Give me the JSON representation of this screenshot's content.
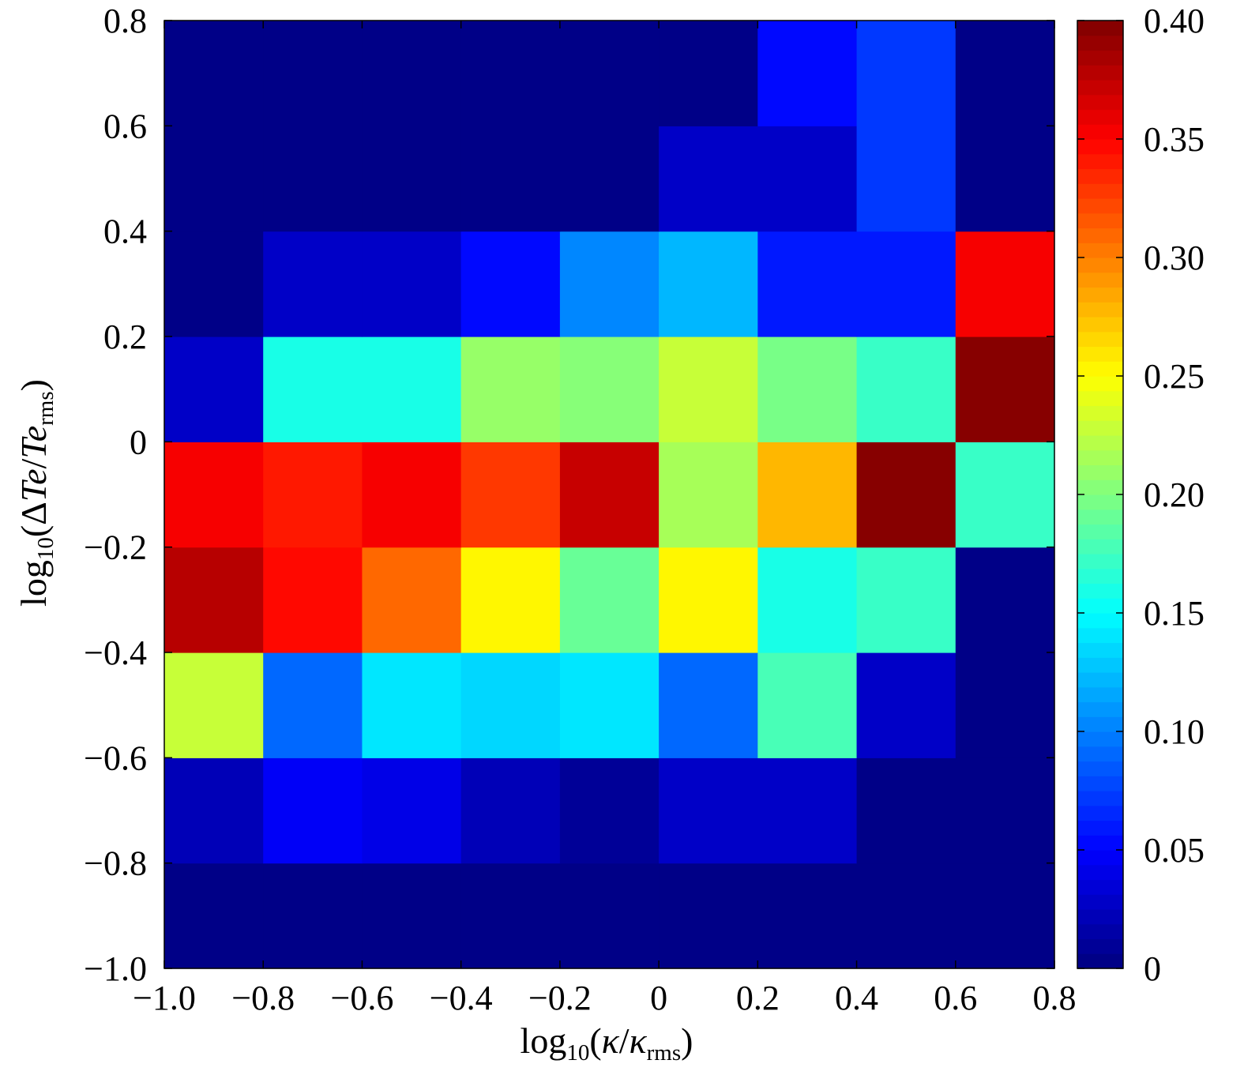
{
  "chart_data": {
    "type": "heatmap",
    "title": "",
    "xlabel": {
      "prefix": "log",
      "base": "10",
      "open": "(",
      "num": "κ",
      "slash": "/",
      "den": "κ",
      "den_sub": "rms",
      "close": ")"
    },
    "ylabel": {
      "prefix": "log",
      "base": "10",
      "open": "(",
      "delta": "Δ",
      "num": "Te",
      "slash": "/",
      "den": "Te",
      "den_sub": "rms",
      "close": ")"
    },
    "xlim": [
      -1.0,
      0.8
    ],
    "ylim": [
      -1.0,
      0.8
    ],
    "x_edges": [
      -1.0,
      -0.8,
      -0.6,
      -0.4,
      -0.2,
      0.0,
      0.2,
      0.4,
      0.6,
      0.8
    ],
    "y_edges": [
      -1.0,
      -0.8,
      -0.6,
      -0.4,
      -0.2,
      0.0,
      0.2,
      0.4,
      0.6,
      0.8
    ],
    "x_ticks": [
      {
        "value": -1.0,
        "label": "−1.0"
      },
      {
        "value": -0.8,
        "label": "−0.8"
      },
      {
        "value": -0.6,
        "label": "−0.6"
      },
      {
        "value": -0.4,
        "label": "−0.4"
      },
      {
        "value": -0.2,
        "label": "−0.2"
      },
      {
        "value": 0.0,
        "label": "0"
      },
      {
        "value": 0.2,
        "label": "0.2"
      },
      {
        "value": 0.4,
        "label": "0.4"
      },
      {
        "value": 0.6,
        "label": "0.6"
      },
      {
        "value": 0.8,
        "label": "0.8"
      }
    ],
    "y_ticks": [
      {
        "value": -1.0,
        "label": "−1.0"
      },
      {
        "value": -0.8,
        "label": "−0.8"
      },
      {
        "value": -0.6,
        "label": "−0.6"
      },
      {
        "value": -0.4,
        "label": "−0.4"
      },
      {
        "value": -0.2,
        "label": "−0.2"
      },
      {
        "value": 0.0,
        "label": "0"
      },
      {
        "value": 0.2,
        "label": "0.2"
      },
      {
        "value": 0.4,
        "label": "0.4"
      },
      {
        "value": 0.6,
        "label": "0.6"
      },
      {
        "value": 0.8,
        "label": "0.8"
      }
    ],
    "values_rows_bottom_to_top": [
      [
        0.0,
        0.005,
        0.0,
        0.0,
        0.0,
        0.0,
        0.0,
        0.0,
        0.0
      ],
      [
        0.02,
        0.045,
        0.04,
        0.02,
        0.01,
        0.03,
        0.03,
        0.0,
        0.0
      ],
      [
        0.23,
        0.09,
        0.14,
        0.135,
        0.14,
        0.09,
        0.18,
        0.03,
        0.0
      ],
      [
        0.38,
        0.35,
        0.31,
        0.25,
        0.19,
        0.255,
        0.16,
        0.17,
        0.0
      ],
      [
        0.355,
        0.34,
        0.355,
        0.33,
        0.37,
        0.215,
        0.28,
        0.4,
        0.17
      ],
      [
        0.025,
        0.16,
        0.16,
        0.21,
        0.205,
        0.23,
        0.195,
        0.17,
        0.4
      ],
      [
        0.0,
        0.025,
        0.03,
        0.05,
        0.1,
        0.12,
        0.06,
        0.06,
        0.355
      ],
      [
        0.0,
        0.0,
        0.0,
        0.005,
        0.0,
        0.03,
        0.03,
        0.07,
        0.0
      ],
      [
        0.0,
        0.0,
        0.0,
        0.0,
        0.0,
        0.0,
        0.055,
        0.07,
        0.0
      ]
    ],
    "colormap": "jet",
    "colorbar": {
      "min": 0,
      "max": 0.4,
      "levels": 64,
      "ticks": [
        {
          "value": 0.0,
          "label": "0"
        },
        {
          "value": 0.05,
          "label": "0.05"
        },
        {
          "value": 0.1,
          "label": "0.10"
        },
        {
          "value": 0.15,
          "label": "0.15"
        },
        {
          "value": 0.2,
          "label": "0.20"
        },
        {
          "value": 0.25,
          "label": "0.25"
        },
        {
          "value": 0.3,
          "label": "0.30"
        },
        {
          "value": 0.35,
          "label": "0.35"
        },
        {
          "value": 0.4,
          "label": "0.40"
        }
      ]
    },
    "grid": false,
    "legend": "none"
  }
}
